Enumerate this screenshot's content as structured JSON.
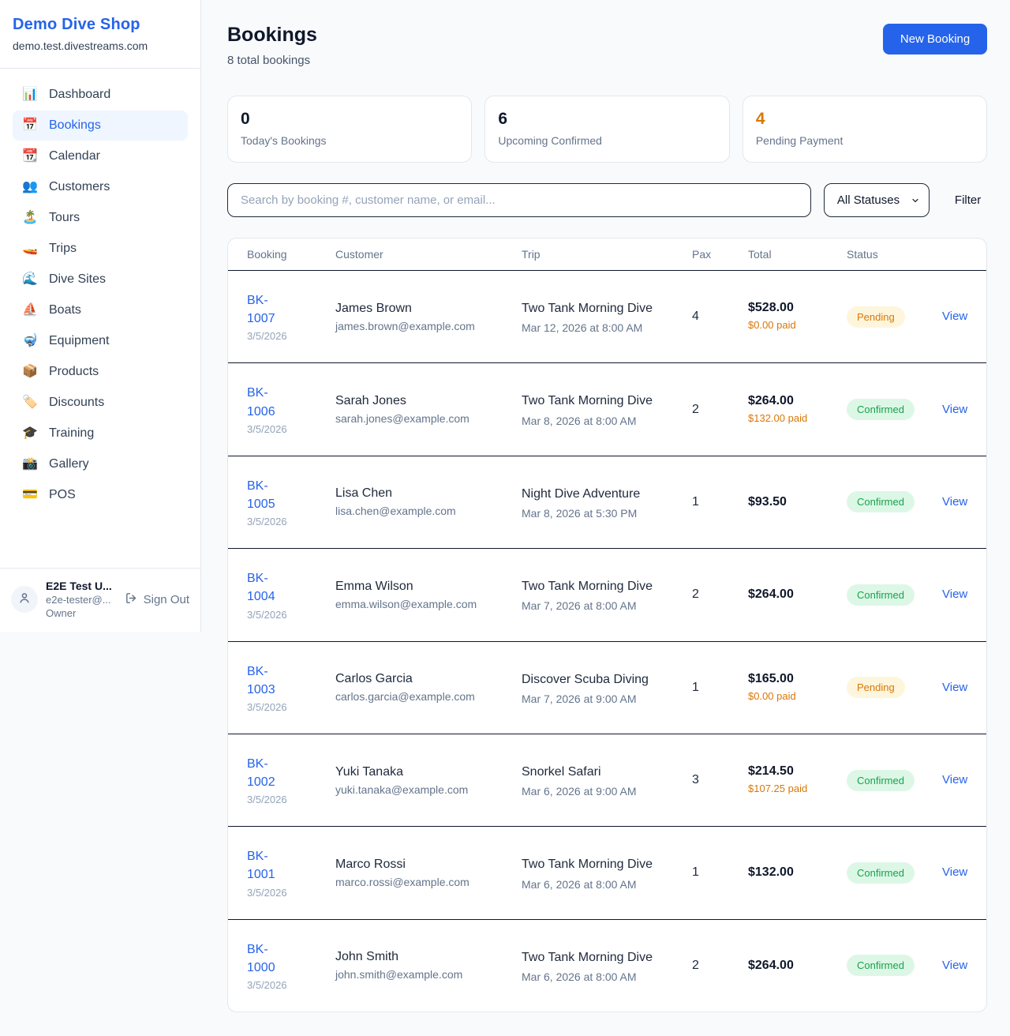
{
  "colors": {
    "accent": "#2563eb",
    "orange": "#d97706",
    "statuses": {
      "Pending": {
        "bg": "#fdf6dd",
        "text": "#d97706"
      },
      "Confirmed": {
        "bg": "#ddf7e7",
        "text": "#16a34a"
      }
    }
  },
  "sidebar": {
    "title": "Demo Dive Shop",
    "domain": "demo.test.divestreams.com",
    "items": [
      {
        "name": "dashboard",
        "icon": "📊",
        "label": "Dashboard",
        "active": false
      },
      {
        "name": "bookings",
        "icon": "📅",
        "label": "Bookings",
        "active": true
      },
      {
        "name": "calendar",
        "icon": "📆",
        "label": "Calendar",
        "active": false
      },
      {
        "name": "customers",
        "icon": "👥",
        "label": "Customers",
        "active": false
      },
      {
        "name": "tours",
        "icon": "🏝️",
        "label": "Tours",
        "active": false
      },
      {
        "name": "trips",
        "icon": "🚤",
        "label": "Trips",
        "active": false
      },
      {
        "name": "dive-sites",
        "icon": "🌊",
        "label": "Dive Sites",
        "active": false
      },
      {
        "name": "boats",
        "icon": "⛵",
        "label": "Boats",
        "active": false
      },
      {
        "name": "equipment",
        "icon": "🤿",
        "label": "Equipment",
        "active": false
      },
      {
        "name": "products",
        "icon": "📦",
        "label": "Products",
        "active": false
      },
      {
        "name": "discounts",
        "icon": "🏷️",
        "label": "Discounts",
        "active": false
      },
      {
        "name": "training",
        "icon": "🎓",
        "label": "Training",
        "active": false
      },
      {
        "name": "gallery",
        "icon": "📸",
        "label": "Gallery",
        "active": false
      },
      {
        "name": "pos",
        "icon": "💳",
        "label": "POS",
        "active": false
      }
    ],
    "user": {
      "name": "E2E Test U...",
      "email": "e2e-tester@...",
      "role": "Owner",
      "sign_out_label": "Sign Out"
    }
  },
  "header": {
    "title": "Bookings",
    "subtitle": "8 total bookings",
    "new_booking_label": "New Booking"
  },
  "stats": [
    {
      "value": "0",
      "label": "Today's Bookings",
      "highlight": false
    },
    {
      "value": "6",
      "label": "Upcoming Confirmed",
      "highlight": false
    },
    {
      "value": "4",
      "label": "Pending Payment",
      "highlight": true
    }
  ],
  "filters": {
    "search_placeholder": "Search by booking #, customer name, or email...",
    "status_selected": "All Statuses",
    "filter_label": "Filter"
  },
  "table": {
    "headers": [
      "Booking",
      "Customer",
      "Trip",
      "Pax",
      "Total",
      "Status"
    ],
    "view_label": "View",
    "rows": [
      {
        "id": "BK-1007",
        "date": "3/5/2026",
        "customer": "James Brown",
        "email": "james.brown@example.com",
        "trip": "Two Tank Morning Dive",
        "trip_datetime": "Mar 12, 2026 at 8:00 AM",
        "pax": "4",
        "total": "$528.00",
        "paid": "$0.00 paid",
        "status": "Pending"
      },
      {
        "id": "BK-1006",
        "date": "3/5/2026",
        "customer": "Sarah Jones",
        "email": "sarah.jones@example.com",
        "trip": "Two Tank Morning Dive",
        "trip_datetime": "Mar 8, 2026 at 8:00 AM",
        "pax": "2",
        "total": "$264.00",
        "paid": "$132.00 paid",
        "status": "Confirmed"
      },
      {
        "id": "BK-1005",
        "date": "3/5/2026",
        "customer": "Lisa Chen",
        "email": "lisa.chen@example.com",
        "trip": "Night Dive Adventure",
        "trip_datetime": "Mar 8, 2026 at 5:30 PM",
        "pax": "1",
        "total": "$93.50",
        "paid": "",
        "status": "Confirmed"
      },
      {
        "id": "BK-1004",
        "date": "3/5/2026",
        "customer": "Emma Wilson",
        "email": "emma.wilson@example.com",
        "trip": "Two Tank Morning Dive",
        "trip_datetime": "Mar 7, 2026 at 8:00 AM",
        "pax": "2",
        "total": "$264.00",
        "paid": "",
        "status": "Confirmed"
      },
      {
        "id": "BK-1003",
        "date": "3/5/2026",
        "customer": "Carlos Garcia",
        "email": "carlos.garcia@example.com",
        "trip": "Discover Scuba Diving",
        "trip_datetime": "Mar 7, 2026 at 9:00 AM",
        "pax": "1",
        "total": "$165.00",
        "paid": "$0.00 paid",
        "status": "Pending"
      },
      {
        "id": "BK-1002",
        "date": "3/5/2026",
        "customer": "Yuki Tanaka",
        "email": "yuki.tanaka@example.com",
        "trip": "Snorkel Safari",
        "trip_datetime": "Mar 6, 2026 at 9:00 AM",
        "pax": "3",
        "total": "$214.50",
        "paid": "$107.25 paid",
        "status": "Confirmed"
      },
      {
        "id": "BK-1001",
        "date": "3/5/2026",
        "customer": "Marco Rossi",
        "email": "marco.rossi@example.com",
        "trip": "Two Tank Morning Dive",
        "trip_datetime": "Mar 6, 2026 at 8:00 AM",
        "pax": "1",
        "total": "$132.00",
        "paid": "",
        "status": "Confirmed"
      },
      {
        "id": "BK-1000",
        "date": "3/5/2026",
        "customer": "John Smith",
        "email": "john.smith@example.com",
        "trip": "Two Tank Morning Dive",
        "trip_datetime": "Mar 6, 2026 at 8:00 AM",
        "pax": "2",
        "total": "$264.00",
        "paid": "",
        "status": "Confirmed"
      }
    ]
  }
}
